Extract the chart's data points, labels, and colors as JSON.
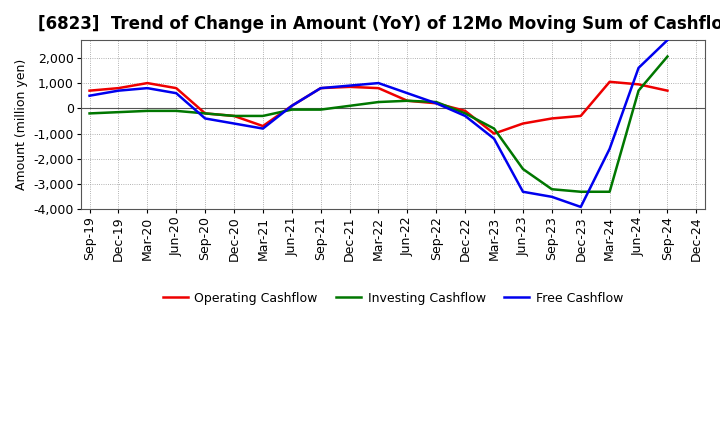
{
  "title": "[6823]  Trend of Change in Amount (YoY) of 12Mo Moving Sum of Cashflows",
  "ylabel": "Amount (million yen)",
  "x_labels": [
    "Sep-19",
    "Dec-19",
    "Mar-20",
    "Jun-20",
    "Sep-20",
    "Dec-20",
    "Mar-21",
    "Jun-21",
    "Sep-21",
    "Dec-21",
    "Mar-22",
    "Jun-22",
    "Sep-22",
    "Dec-22",
    "Mar-23",
    "Jun-23",
    "Sep-23",
    "Dec-23",
    "Mar-24",
    "Jun-24",
    "Sep-24",
    "Dec-24"
  ],
  "operating_cashflow": [
    700,
    800,
    1000,
    800,
    -200,
    -300,
    -700,
    100,
    800,
    850,
    800,
    300,
    200,
    -100,
    -1000,
    -600,
    -400,
    -300,
    1050,
    950,
    700,
    null
  ],
  "investing_cashflow": [
    -200,
    -150,
    -100,
    -100,
    -200,
    -300,
    -300,
    -50,
    -50,
    100,
    250,
    300,
    250,
    -200,
    -800,
    -2400,
    -3200,
    -3300,
    -3300,
    700,
    2050,
    null
  ],
  "free_cashflow": [
    500,
    700,
    800,
    600,
    -400,
    -600,
    -800,
    100,
    800,
    900,
    1000,
    600,
    200,
    -300,
    -1200,
    -3300,
    -3500,
    -3900,
    -1600,
    1600,
    2700,
    null
  ],
  "ylim": [
    -4000,
    2700
  ],
  "yticks": [
    -4000,
    -3000,
    -2000,
    -1000,
    0,
    1000,
    2000
  ],
  "operating_color": "#ee0000",
  "investing_color": "#007700",
  "free_color": "#0000ee",
  "background_color": "#ffffff",
  "plot_bg_color": "#ffffff",
  "grid_color": "#999999",
  "title_fontsize": 12,
  "label_fontsize": 9,
  "tick_fontsize": 9,
  "legend_fontsize": 9
}
